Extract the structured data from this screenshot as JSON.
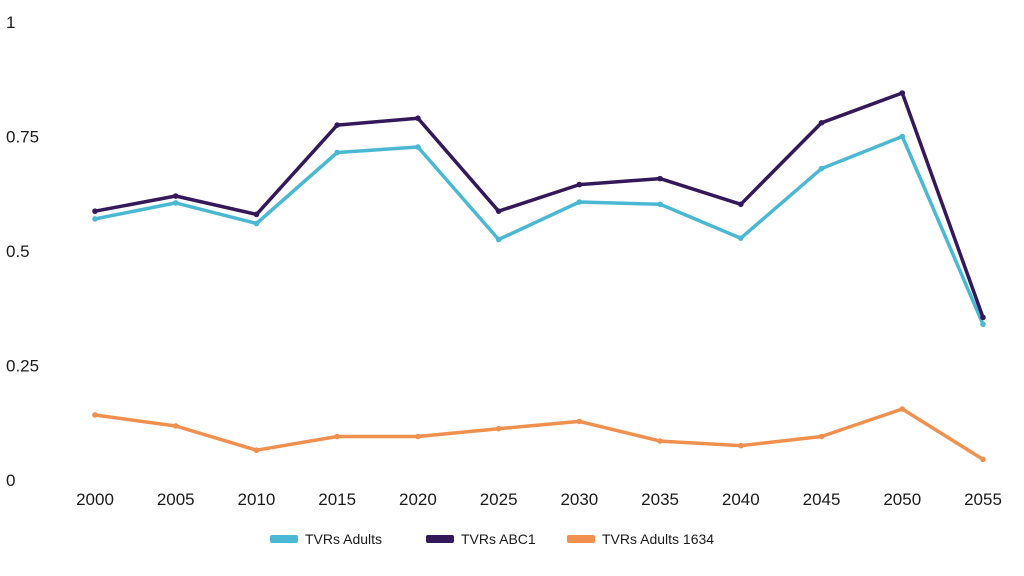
{
  "chart_data": {
    "type": "line",
    "categories": [
      "2000",
      "2005",
      "2010",
      "2015",
      "2020",
      "2025",
      "2030",
      "2035",
      "2040",
      "2045",
      "2050",
      "2055"
    ],
    "ylim": [
      0,
      1
    ],
    "y_ticks": [
      "0",
      "0.25",
      "0.5",
      "0.75",
      "1"
    ],
    "grid": false,
    "legend_position": "bottom",
    "series": [
      {
        "name": "TVRs Adults",
        "color": "#4bb8d3",
        "values": [
          0.57,
          0.605,
          0.56,
          0.715,
          0.727,
          0.525,
          0.607,
          0.602,
          0.528,
          0.68,
          0.75,
          0.34
        ]
      },
      {
        "name": "TVRs ABC1",
        "color": "#33195a",
        "values": [
          0.587,
          0.62,
          0.58,
          0.775,
          0.79,
          0.587,
          0.645,
          0.658,
          0.602,
          0.78,
          0.845,
          0.355
        ]
      },
      {
        "name": "TVRs Adults 1634",
        "color": "#f0904f",
        "values": [
          0.142,
          0.118,
          0.065,
          0.095,
          0.095,
          0.112,
          0.128,
          0.085,
          0.075,
          0.095,
          0.155,
          0.045
        ]
      }
    ]
  }
}
